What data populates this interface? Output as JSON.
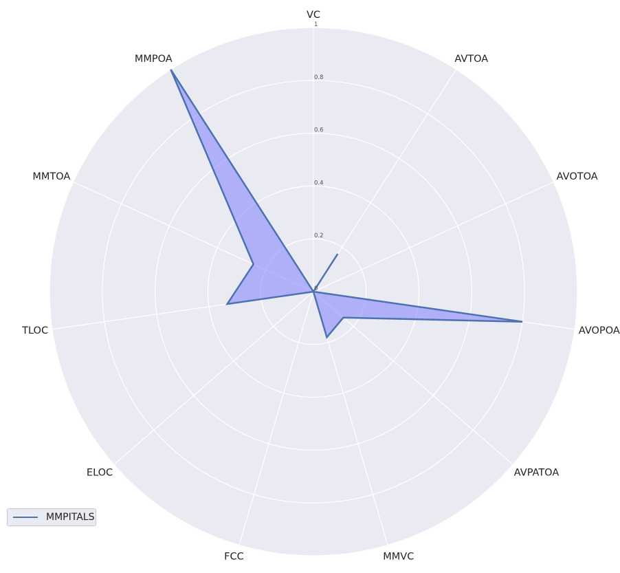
{
  "chart_data": {
    "type": "radar",
    "categories": [
      "VC",
      "AVTOA",
      "AVOTOA",
      "AVOPOA",
      "AVPATOA",
      "MMVC",
      "FCC",
      "ELOC",
      "TLOC",
      "MMTOA",
      "MMPOA"
    ],
    "series": [
      {
        "name": "MMPITALS",
        "values": [
          0.0,
          0.17,
          0.0,
          0.8,
          0.15,
          0.18,
          0.0,
          0.0,
          0.33,
          0.25,
          1.0
        ]
      }
    ],
    "rlim": [
      0,
      1
    ],
    "rticks": [
      0,
      0.2,
      0.4,
      0.6,
      0.8,
      1
    ],
    "rtick_labels": [
      "0",
      "0.2",
      "0.4",
      "0.6",
      "0.8",
      "1"
    ],
    "grid": true,
    "legend_position": "bottom-left"
  },
  "colors": {
    "background": "#eaeaf2",
    "grid": "#ffffff",
    "line": "#4c72b0",
    "fill": "#8080ff"
  }
}
